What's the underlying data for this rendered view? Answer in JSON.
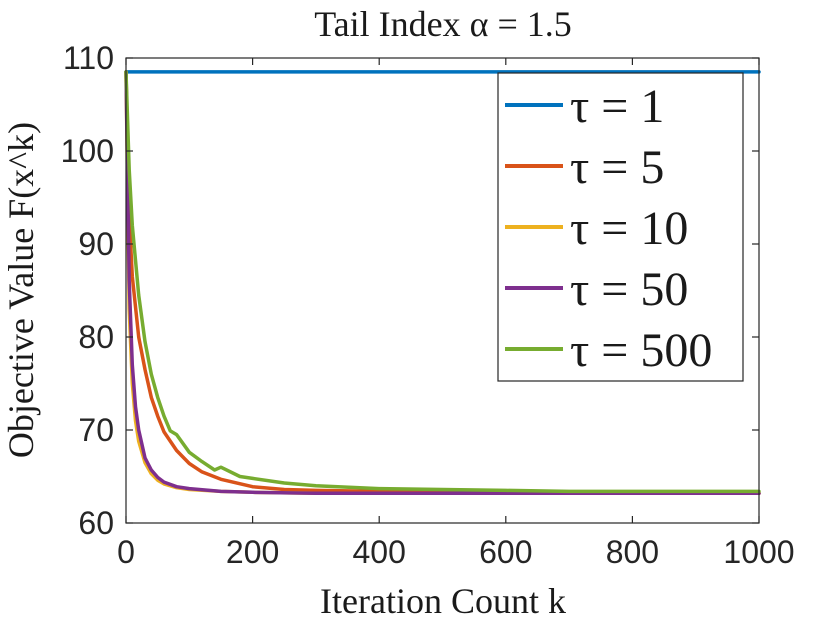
{
  "chart_data": {
    "type": "line",
    "title": "Tail Index α = 1.5",
    "xlabel": "Iteration Count k",
    "ylabel": "Objective Value F(x^k)",
    "xlim": [
      0,
      1000
    ],
    "ylim": [
      60,
      110
    ],
    "xticks": [
      0,
      200,
      400,
      600,
      800,
      1000
    ],
    "yticks": [
      60,
      70,
      80,
      90,
      100,
      110
    ],
    "grid": false,
    "legend_position": "top-right",
    "series": [
      {
        "name": "τ = 1",
        "color": "#0072bd",
        "x": [
          0,
          1000
        ],
        "y": [
          108.5,
          108.5
        ]
      },
      {
        "name": "τ = 5",
        "color": "#d95319",
        "x": [
          0,
          5,
          10,
          20,
          30,
          40,
          50,
          60,
          80,
          100,
          120,
          150,
          200,
          250,
          300,
          400,
          500,
          600,
          700,
          800,
          900,
          1000
        ],
        "y": [
          108.5,
          93.0,
          86.5,
          80.0,
          76.5,
          73.5,
          71.5,
          69.8,
          67.8,
          66.4,
          65.5,
          64.7,
          63.9,
          63.6,
          63.5,
          63.4,
          63.3,
          63.3,
          63.2,
          63.2,
          63.2,
          63.2
        ]
      },
      {
        "name": "τ = 10",
        "color": "#edb120",
        "x": [
          0,
          5,
          10,
          15,
          20,
          30,
          40,
          50,
          60,
          80,
          100,
          150,
          200,
          300,
          400,
          600,
          800,
          1000
        ],
        "y": [
          108.5,
          83.0,
          75.0,
          71.0,
          68.8,
          66.5,
          65.3,
          64.6,
          64.2,
          63.8,
          63.6,
          63.4,
          63.3,
          63.2,
          63.2,
          63.2,
          63.2,
          63.2
        ]
      },
      {
        "name": "τ = 50",
        "color": "#7e2f8e",
        "x": [
          0,
          5,
          10,
          15,
          20,
          30,
          40,
          50,
          60,
          80,
          100,
          150,
          200,
          300,
          400,
          600,
          800,
          1000
        ],
        "y": [
          108.5,
          86.0,
          77.0,
          72.5,
          70.0,
          67.0,
          65.7,
          64.9,
          64.4,
          63.9,
          63.7,
          63.4,
          63.3,
          63.2,
          63.2,
          63.2,
          63.2,
          63.2
        ]
      },
      {
        "name": "τ = 500",
        "color": "#77ac30",
        "x": [
          0,
          5,
          10,
          20,
          30,
          40,
          50,
          60,
          70,
          80,
          100,
          120,
          140,
          150,
          180,
          200,
          250,
          300,
          400,
          500,
          600,
          700,
          800,
          900,
          1000
        ],
        "y": [
          108.5,
          98.0,
          92.0,
          84.5,
          79.5,
          76.0,
          73.5,
          71.5,
          69.9,
          69.5,
          67.6,
          66.6,
          65.7,
          66.0,
          65.0,
          64.8,
          64.3,
          64.0,
          63.7,
          63.6,
          63.5,
          63.4,
          63.4,
          63.4,
          63.4
        ]
      }
    ]
  }
}
